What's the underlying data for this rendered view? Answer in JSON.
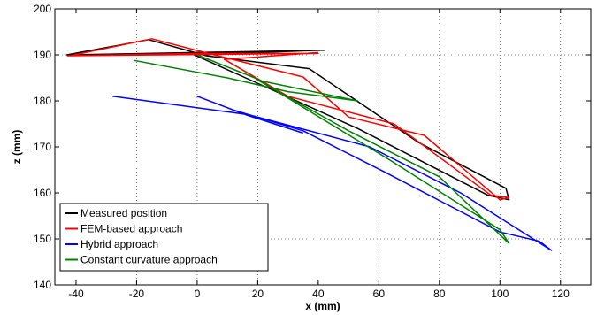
{
  "chart_data": {
    "type": "line",
    "title": "",
    "xlabel": "x (mm)",
    "ylabel": "z (mm)",
    "xlim": [
      -47,
      130
    ],
    "ylim": [
      140,
      200
    ],
    "xticks": [
      -40,
      -20,
      0,
      20,
      40,
      60,
      80,
      100,
      120
    ],
    "yticks": [
      140,
      150,
      160,
      170,
      180,
      190,
      200
    ],
    "xtick_labels": [
      "-40",
      "-20",
      "0",
      "20",
      "40",
      "60",
      "80",
      "100",
      "120"
    ],
    "ytick_labels": [
      "140",
      "150",
      "160",
      "170",
      "180",
      "190",
      "200"
    ],
    "grid": "dotted",
    "grid_xticks": [
      -20,
      0,
      20,
      60,
      80,
      100,
      120
    ],
    "grid_yticks": [
      150,
      190
    ],
    "legend_position": "bottom-left",
    "series": [
      {
        "name": "Measured position",
        "color": "#000000",
        "x": [
          -43,
          0,
          42,
          -43,
          -16,
          3,
          37,
          73,
          102,
          103,
          96,
          53,
          16,
          -1,
          41
        ],
        "y": [
          190,
          190.3,
          191,
          190,
          193.3,
          189.8,
          187,
          171,
          161,
          158.5,
          159.5,
          174,
          185,
          190,
          191
        ]
      },
      {
        "name": "FEM-based approach",
        "color": "#ff0000",
        "x": [
          -43,
          -1,
          40,
          -42,
          -15,
          2,
          35,
          50,
          75,
          100,
          103,
          97,
          65,
          30,
          9,
          40
        ],
        "y": [
          189.8,
          190.3,
          190.3,
          189.8,
          193.5,
          190.6,
          185.2,
          176.5,
          172.5,
          158.5,
          159,
          159.5,
          175,
          181,
          189,
          190.5
        ]
      },
      {
        "name": "Hybrid approach",
        "color": "#0000ff",
        "x": [
          -28,
          17,
          57,
          87,
          117,
          113,
          100,
          62,
          35,
          12,
          0,
          16,
          35
        ],
        "y": [
          181,
          177,
          170,
          160,
          147.5,
          149.5,
          151.5,
          164.5,
          173.5,
          178,
          181,
          177,
          173
        ]
      },
      {
        "name": "Constant curvature approach",
        "color": "#008000",
        "x": [
          -21,
          10,
          30,
          53,
          20,
          50,
          80,
          103,
          100,
          64,
          19,
          0
        ],
        "y": [
          188.8,
          185,
          182,
          180,
          184.5,
          173.5,
          163.5,
          149,
          152,
          167,
          185,
          190
        ]
      }
    ]
  }
}
